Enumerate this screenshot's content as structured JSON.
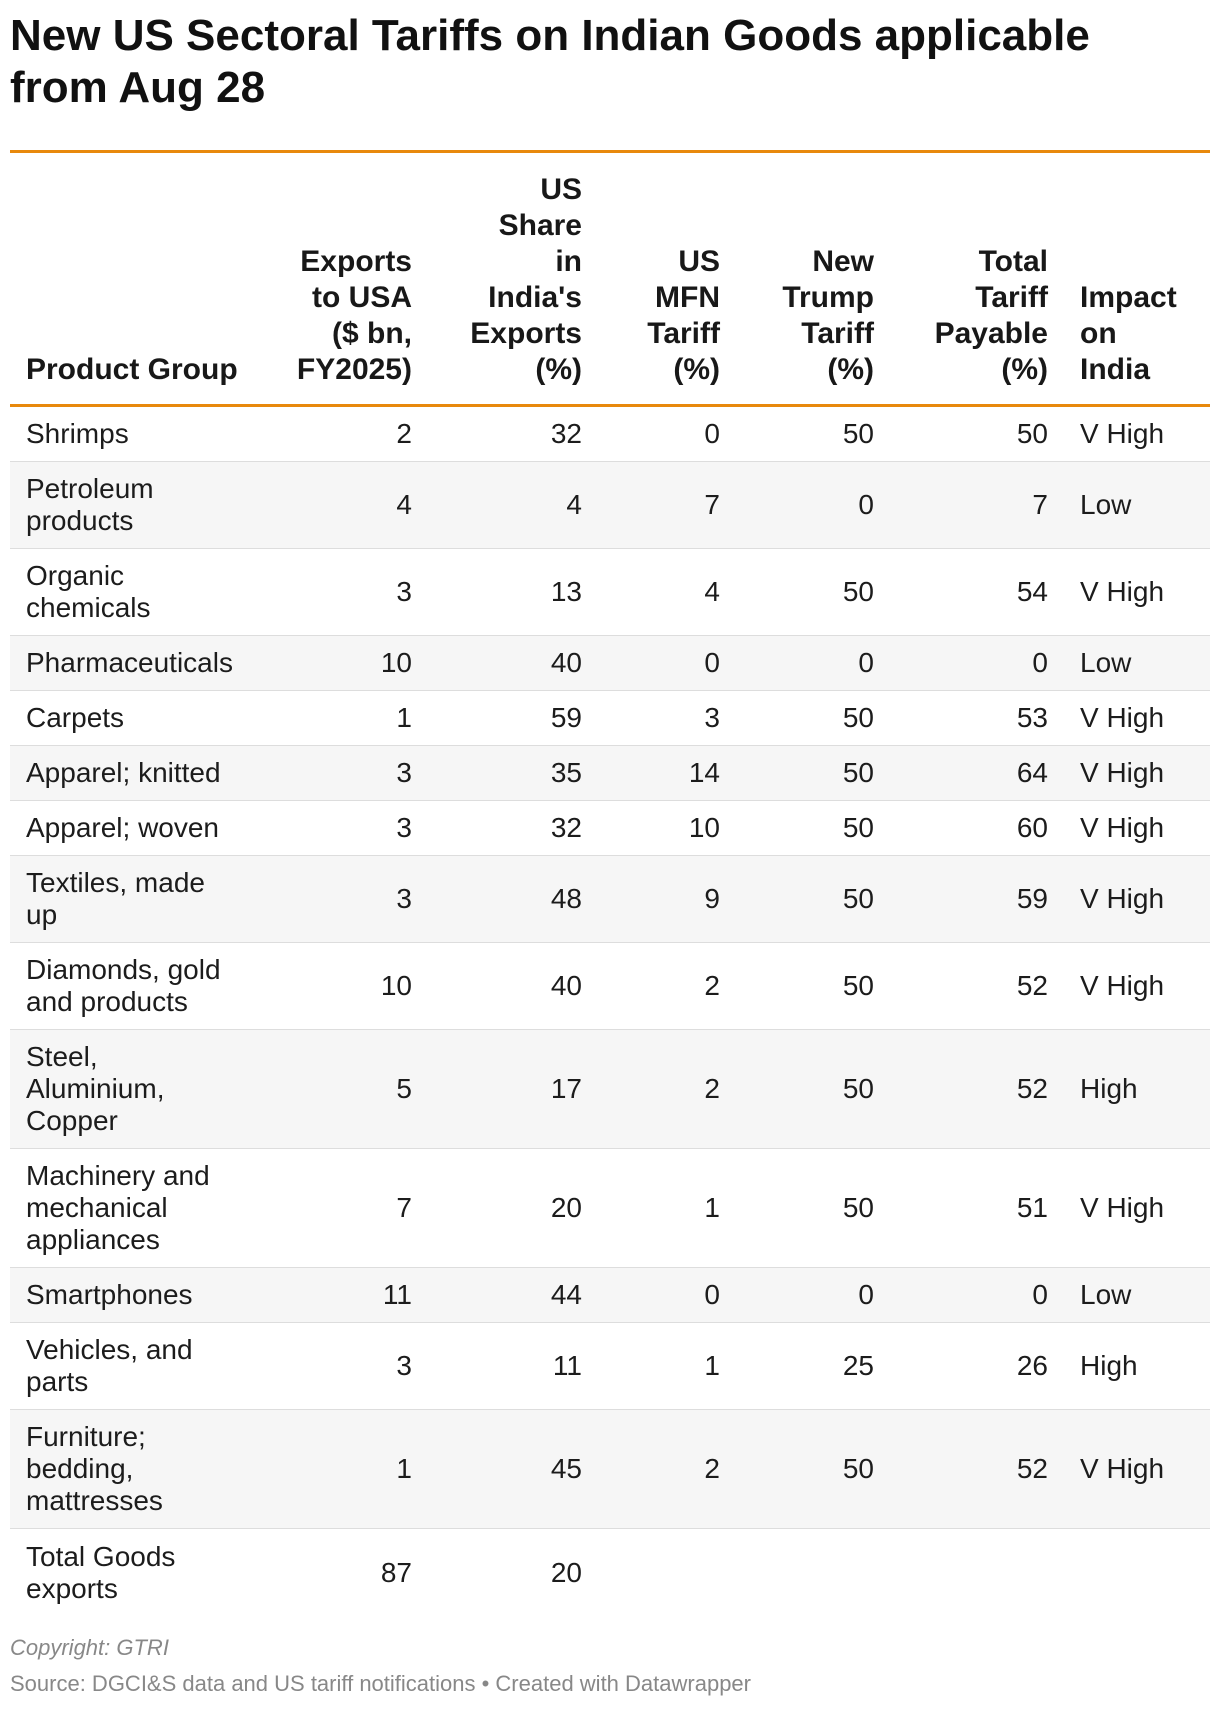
{
  "title": "New US Sectoral Tariffs on Indian Goods applicable from Aug 28",
  "columns": [
    {
      "key": "product",
      "lines": [
        "Product Group"
      ]
    },
    {
      "key": "exports",
      "lines": [
        "Exports",
        "to USA",
        "($ bn,",
        "FY2025)"
      ]
    },
    {
      "key": "share",
      "lines": [
        "US",
        "Share",
        "in",
        "India's",
        "Exports",
        "(%)"
      ]
    },
    {
      "key": "mfn",
      "lines": [
        "US",
        "MFN",
        "Tariff",
        "(%)"
      ]
    },
    {
      "key": "trump",
      "lines": [
        "New",
        "Trump",
        "Tariff",
        "(%)"
      ]
    },
    {
      "key": "total",
      "lines": [
        "Total",
        "Tariff",
        "Payable",
        "(%)"
      ]
    },
    {
      "key": "impact",
      "lines": [
        "Impact",
        "on",
        "India"
      ]
    }
  ],
  "rows": [
    {
      "product": [
        "Shrimps"
      ],
      "exports": "2",
      "share": "32",
      "mfn": "0",
      "trump": "50",
      "total": "50",
      "impact": "V High"
    },
    {
      "product": [
        "Petroleum",
        "products"
      ],
      "exports": "4",
      "share": "4",
      "mfn": "7",
      "trump": "0",
      "total": "7",
      "impact": "Low"
    },
    {
      "product": [
        "Organic",
        "chemicals"
      ],
      "exports": "3",
      "share": "13",
      "mfn": "4",
      "trump": "50",
      "total": "54",
      "impact": "V High"
    },
    {
      "product": [
        "Pharmaceuticals"
      ],
      "exports": "10",
      "share": "40",
      "mfn": "0",
      "trump": "0",
      "total": "0",
      "impact": "Low"
    },
    {
      "product": [
        "Carpets"
      ],
      "exports": "1",
      "share": "59",
      "mfn": "3",
      "trump": "50",
      "total": "53",
      "impact": "V High"
    },
    {
      "product": [
        "Apparel; knitted"
      ],
      "exports": "3",
      "share": "35",
      "mfn": "14",
      "trump": "50",
      "total": "64",
      "impact": "V High"
    },
    {
      "product": [
        "Apparel; woven"
      ],
      "exports": "3",
      "share": "32",
      "mfn": "10",
      "trump": "50",
      "total": "60",
      "impact": "V High"
    },
    {
      "product": [
        "Textiles, made",
        "up"
      ],
      "exports": "3",
      "share": "48",
      "mfn": "9",
      "trump": "50",
      "total": "59",
      "impact": "V High"
    },
    {
      "product": [
        "Diamonds, gold",
        "and products"
      ],
      "exports": "10",
      "share": "40",
      "mfn": "2",
      "trump": "50",
      "total": "52",
      "impact": "V High"
    },
    {
      "product": [
        "Steel,",
        "Aluminium,",
        "Copper"
      ],
      "exports": "5",
      "share": "17",
      "mfn": "2",
      "trump": "50",
      "total": "52",
      "impact": "High"
    },
    {
      "product": [
        "Machinery and",
        "mechanical",
        "appliances"
      ],
      "exports": "7",
      "share": "20",
      "mfn": "1",
      "trump": "50",
      "total": "51",
      "impact": "V High"
    },
    {
      "product": [
        "Smartphones"
      ],
      "exports": "11",
      "share": "44",
      "mfn": "0",
      "trump": "0",
      "total": "0",
      "impact": "Low"
    },
    {
      "product": [
        "Vehicles, and",
        "parts"
      ],
      "exports": "3",
      "share": "11",
      "mfn": "1",
      "trump": "25",
      "total": "26",
      "impact": "High"
    },
    {
      "product": [
        "Furniture;",
        "bedding,",
        "mattresses"
      ],
      "exports": "1",
      "share": "45",
      "mfn": "2",
      "trump": "50",
      "total": "52",
      "impact": "V High"
    },
    {
      "product": [
        "Total Goods",
        "exports"
      ],
      "exports": "87",
      "share": "20",
      "mfn": "",
      "trump": "",
      "total": "",
      "impact": ""
    }
  ],
  "copyright": "Copyright: GTRI",
  "source": "Source: DGCI&S data and US tariff notifications • Created with Datawrapper",
  "colors": {
    "accent_rule": "#e8890c",
    "text": "#181818",
    "muted": "#888888",
    "zebra": "#f6f6f6",
    "divider": "#dddddd"
  }
}
